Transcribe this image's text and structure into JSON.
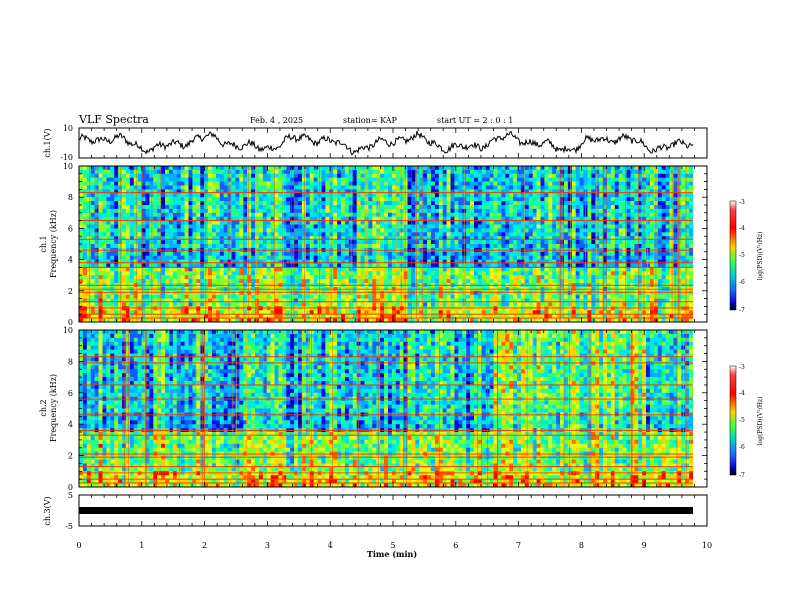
{
  "header": {
    "title": "VLF Spectra",
    "date": "Feb. 4 , 2025",
    "station": "station= KAP",
    "start": "start UT =  2 : 0 : 1"
  },
  "chart_data": [
    {
      "type": "line",
      "panel": "ch1-waveform",
      "ylabel": "ch.1(V)",
      "ylim": [
        -10,
        10
      ],
      "yticks": [
        "10",
        "-10"
      ],
      "xlim": [
        0,
        10
      ],
      "description_unit": "V"
    },
    {
      "type": "heatmap",
      "panel": "ch1-spectrogram",
      "ylabel_channel": "ch.1",
      "ylabel": "Frequency (kHz)",
      "ylim": [
        0,
        10
      ],
      "yticks": [
        0,
        2,
        4,
        6,
        8,
        10
      ],
      "xlim": [
        0,
        10
      ],
      "band_lines_khz": [
        0.25,
        0.5,
        0.9,
        1.3,
        1.9,
        2.1,
        2.35,
        3.5,
        3.8,
        4.6,
        5.3,
        6.5,
        8.3
      ],
      "colorbar": {
        "label": "log(PSD)(V²/Hz)",
        "ticks": [
          "-3",
          "-4",
          "-5",
          "-6",
          "-7"
        ],
        "range": [
          -7,
          -3
        ]
      }
    },
    {
      "type": "heatmap",
      "panel": "ch2-spectrogram",
      "ylabel_channel": "ch.2",
      "ylabel": "Frequency (kHz)",
      "ylim": [
        0,
        10
      ],
      "yticks": [
        0,
        2,
        4,
        6,
        8,
        10
      ],
      "xlim": [
        0,
        10
      ],
      "band_lines_khz": [
        0.25,
        0.5,
        0.9,
        1.3,
        1.9,
        2.1,
        3.3,
        3.6,
        4.6,
        5.6,
        6.5,
        7.9,
        8.3
      ],
      "colorbar": {
        "label": "log(PSD)(V²/Hz)",
        "ticks": [
          "-3",
          "-4",
          "-5",
          "-6",
          "-7"
        ],
        "range": [
          -7,
          -3
        ]
      }
    },
    {
      "type": "line",
      "panel": "ch3-waveform",
      "ylabel": "ch.3(V)",
      "ylim": [
        -5,
        5
      ],
      "yticks": [
        "5",
        "-5"
      ],
      "xlim": [
        0,
        10
      ],
      "x": [
        0,
        9.8
      ],
      "y": [
        0,
        0
      ]
    }
  ],
  "xaxis": {
    "label": "Time (min)",
    "ticks": [
      "0",
      "1",
      "2",
      "3",
      "4",
      "5",
      "6",
      "7",
      "8",
      "9",
      "10"
    ]
  }
}
